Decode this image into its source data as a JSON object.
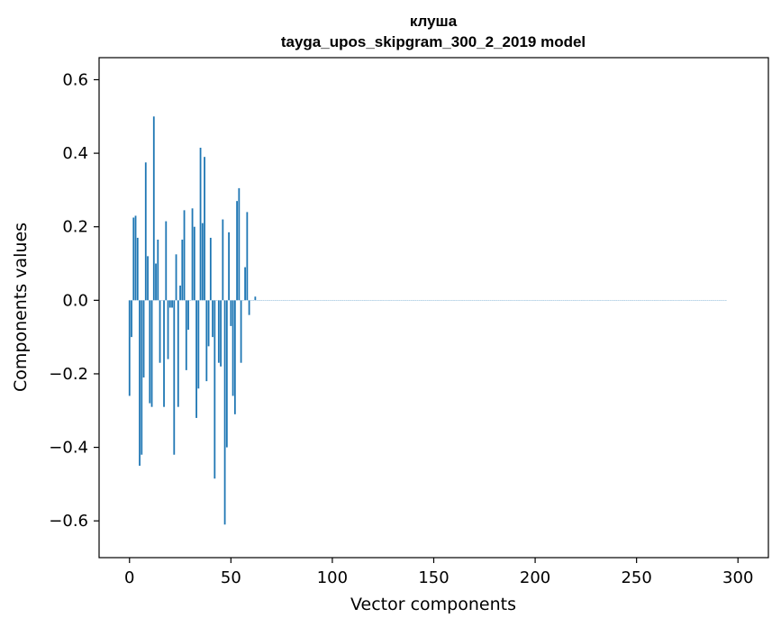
{
  "chart_data": {
    "type": "bar",
    "title": "клуша",
    "subtitle": "tayga_upos_skipgram_300_2_2019 model",
    "xlabel": "Vector components",
    "ylabel": "Components values",
    "xlim": [
      -15,
      315
    ],
    "ylim": [
      -0.7,
      0.66
    ],
    "xticks": [
      0,
      50,
      100,
      150,
      200,
      250,
      300
    ],
    "xtick_labels": [
      "0",
      "50",
      "100",
      "150",
      "200",
      "250",
      "300"
    ],
    "yticks": [
      -0.6,
      -0.4,
      -0.2,
      0.0,
      0.2,
      0.4,
      0.6
    ],
    "ytick_labels": [
      "−0.6",
      "−0.4",
      "−0.2",
      "0.0",
      "0.2",
      "0.4",
      "0.6"
    ],
    "bar_color": "#1f77b4",
    "grid": false,
    "x": "0..299",
    "values": [
      -0.26,
      -0.1,
      0.225,
      0.23,
      0.17,
      -0.45,
      -0.42,
      -0.21,
      0.375,
      0.12,
      -0.28,
      -0.29,
      0.5,
      0.1,
      0.165,
      -0.17,
      0.0,
      -0.29,
      0.215,
      -0.16,
      -0.02,
      -0.02,
      -0.42,
      0.125,
      -0.29,
      0.04,
      0.165,
      0.245,
      -0.19,
      -0.08,
      0.0,
      0.25,
      0.2,
      -0.32,
      -0.24,
      0.415,
      0.21,
      0.39,
      -0.22,
      -0.125,
      0.17,
      -0.1,
      -0.485,
      0.0,
      -0.17,
      -0.18,
      0.22,
      -0.61,
      -0.4,
      0.185,
      -0.07,
      -0.26,
      -0.31,
      0.27,
      0.305,
      -0.17,
      0.0,
      0.09,
      0.24,
      -0.04,
      0.0,
      0.0,
      0.01,
      0.0,
      0.0,
      0.0,
      0.0,
      0.0,
      0.0,
      0.0,
      0.0,
      0.0,
      0.0,
      0.0,
      0.0,
      0.0,
      0.0,
      0.0,
      0.0,
      0.0,
      0.0,
      0.0,
      0.0,
      0.0,
      0.0,
      0.0,
      0.0,
      0.0,
      0.0,
      0.0,
      0.0,
      0.0,
      0.0,
      0.0,
      0.0,
      0.0,
      0.0,
      0.0,
      0.0,
      0.0,
      0.0,
      0.0,
      0.0,
      0.0,
      0.0,
      0.0,
      0.0,
      0.0,
      0.0,
      0.0,
      0.0,
      0.0,
      0.0,
      0.0,
      0.0,
      0.0,
      0.0,
      0.0,
      0.0,
      0.0,
      0.0,
      0.0,
      0.0,
      0.0,
      0.0,
      0.0,
      0.0,
      0.0,
      0.0,
      0.0,
      0.0,
      0.0,
      0.0,
      0.0,
      0.0,
      0.0,
      0.0,
      0.0,
      0.0,
      0.0,
      0.0,
      0.0,
      0.0,
      0.0,
      0.0,
      0.0,
      0.0,
      0.0,
      0.0,
      0.0,
      0.0,
      0.0,
      0.0,
      0.0,
      0.0,
      0.0,
      0.0,
      0.0,
      0.0,
      0.0,
      0.0,
      0.0,
      0.0,
      0.0,
      0.0,
      0.0,
      0.0,
      0.0,
      0.0,
      0.0,
      0.0,
      0.0,
      0.0,
      0.0,
      0.0,
      0.0,
      0.0,
      0.0,
      0.0,
      0.0,
      0.0,
      0.0,
      0.0,
      0.0,
      0.0,
      0.0,
      0.0,
      0.0,
      0.0,
      0.0,
      0.0,
      0.0,
      0.0,
      0.0,
      0.0,
      0.0,
      0.0,
      0.0,
      0.0,
      0.0,
      0.0,
      0.0,
      0.0,
      0.0,
      0.0,
      0.0,
      0.0,
      0.0,
      0.0,
      0.0,
      0.0,
      0.0,
      0.0,
      0.0,
      0.0,
      0.0,
      0.0,
      0.0,
      0.0,
      0.0,
      0.0,
      0.0,
      0.0,
      0.0,
      0.0,
      0.0,
      0.0,
      0.0,
      0.0,
      0.0,
      0.0,
      0.0,
      0.0,
      0.0,
      0.0,
      0.0,
      0.0,
      0.0,
      0.0,
      0.0,
      0.0,
      0.0,
      0.0,
      0.0,
      0.0,
      0.0,
      0.0,
      0.0,
      0.0,
      0.0,
      0.0,
      0.0,
      0.0,
      0.0,
      0.0,
      0.0,
      0.0,
      0.0,
      0.0,
      0.0,
      0.0,
      0.0,
      0.0,
      0.0,
      0.0,
      0.0,
      0.0,
      0.0,
      0.0,
      0.0,
      0.0,
      0.0,
      0.0,
      0.0,
      0.0,
      0.0,
      0.0,
      0.0,
      0.0,
      0.0,
      0.0,
      0.0,
      0.0,
      0.0,
      0.0,
      0.0,
      0.0,
      0.0,
      0.0,
      0.0,
      0.0,
      0.0,
      0.0,
      0.0,
      0.0
    ]
  }
}
